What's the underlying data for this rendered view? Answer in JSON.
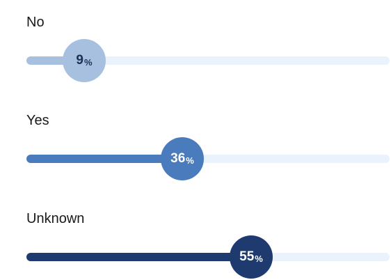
{
  "chart_data": {
    "type": "bar",
    "categories": [
      "No",
      "Yes",
      "Unknown"
    ],
    "values": [
      9,
      36,
      55
    ],
    "value_suffix": "%",
    "xlim": [
      0,
      100
    ],
    "colors": [
      "#a8c0e0",
      "#4a7bbd",
      "#1e3a6e"
    ],
    "label_colors": [
      "#1e2f55",
      "#ffffff",
      "#ffffff"
    ],
    "track_color": "#eaf2fb"
  }
}
